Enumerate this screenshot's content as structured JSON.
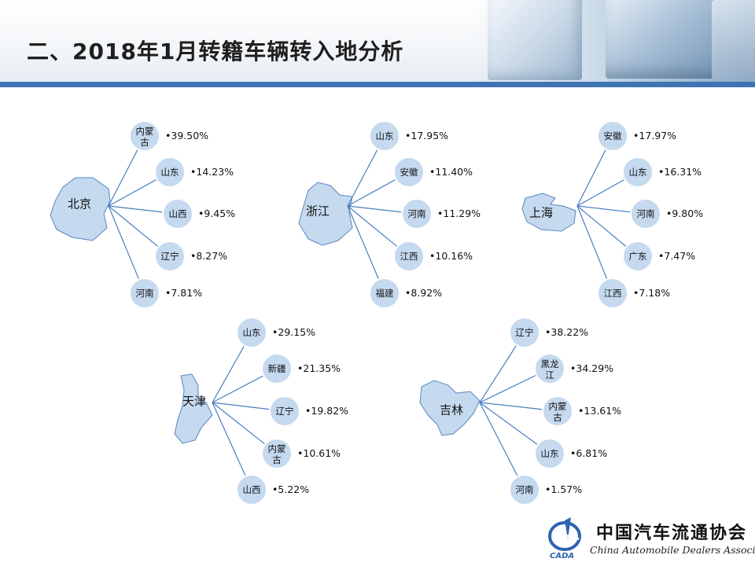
{
  "title": "二、2018年1月转籍车辆转入地分析",
  "colors": {
    "node_fill": "#c5d9ef",
    "node_stroke": "#ffffff",
    "line": "#4a7fc1",
    "map_fill": "#c5d9ef",
    "map_stroke": "#5a86bf",
    "accent_bar": "#3f74b3"
  },
  "groups": [
    {
      "city": "北京",
      "targets": [
        {
          "province": "内蒙古",
          "value": "•39.50%"
        },
        {
          "province": "山东",
          "value": "•14.23%"
        },
        {
          "province": "山西",
          "value": "•9.45%"
        },
        {
          "province": "辽宁",
          "value": "•8.27%"
        },
        {
          "province": "河南",
          "value": "•7.81%"
        }
      ]
    },
    {
      "city": "浙江",
      "targets": [
        {
          "province": "山东",
          "value": "•17.95%"
        },
        {
          "province": "安徽",
          "value": "•11.40%"
        },
        {
          "province": "河南",
          "value": "•11.29%"
        },
        {
          "province": "江西",
          "value": "•10.16%"
        },
        {
          "province": "福建",
          "value": "•8.92%"
        }
      ]
    },
    {
      "city": "上海",
      "targets": [
        {
          "province": "安徽",
          "value": "•17.97%"
        },
        {
          "province": "山东",
          "value": "•16.31%"
        },
        {
          "province": "河南",
          "value": "•9.80%"
        },
        {
          "province": "广东",
          "value": "•7.47%"
        },
        {
          "province": "江西",
          "value": "•7.18%"
        }
      ]
    },
    {
      "city": "天津",
      "targets": [
        {
          "province": "山东",
          "value": "•29.15%"
        },
        {
          "province": "新疆",
          "value": "•21.35%"
        },
        {
          "province": "辽宁",
          "value": "•19.82%"
        },
        {
          "province": "内蒙古",
          "value": "•10.61%"
        },
        {
          "province": "山西",
          "value": "•5.22%"
        }
      ]
    },
    {
      "city": "吉林",
      "targets": [
        {
          "province": "辽宁",
          "value": "•38.22%"
        },
        {
          "province": "黑龙江",
          "value": "•34.29%"
        },
        {
          "province": "内蒙古",
          "value": "•13.61%"
        },
        {
          "province": "山东",
          "value": "•6.81%"
        },
        {
          "province": "河南",
          "value": "•1.57%"
        }
      ]
    }
  ],
  "logo": {
    "cn": "中国汽车流通协会",
    "en": "China Automobile Dealers Association",
    "mark": "CADA"
  }
}
